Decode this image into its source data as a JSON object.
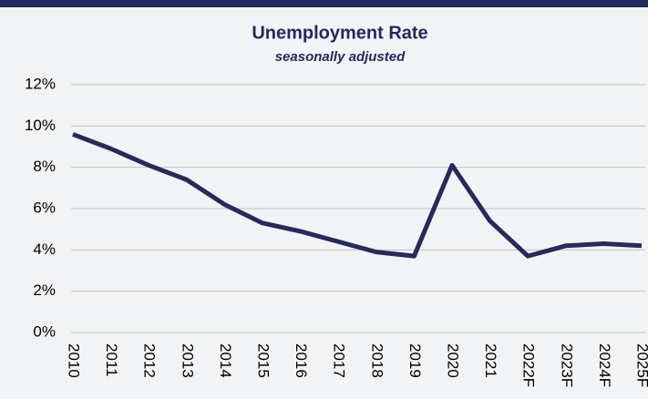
{
  "chart_data": {
    "type": "line",
    "title": "Unemployment Rate",
    "subtitle": "seasonally adjusted",
    "categories": [
      "2010",
      "2011",
      "2012",
      "2013",
      "2014",
      "2015",
      "2016",
      "2017",
      "2018",
      "2019",
      "2020",
      "2021",
      "2022F",
      "2023F",
      "2024F",
      "2025F"
    ],
    "values": [
      9.6,
      8.9,
      8.1,
      7.4,
      6.2,
      5.3,
      4.9,
      4.4,
      3.9,
      3.7,
      8.1,
      5.4,
      3.7,
      4.2,
      4.3,
      4.2
    ],
    "color": "#272a5b",
    "ylim": [
      0,
      12
    ],
    "yticks": [
      {
        "value": 0,
        "label": "0%"
      },
      {
        "value": 2,
        "label": "2%"
      },
      {
        "value": 4,
        "label": "4%"
      },
      {
        "value": 6,
        "label": "6%"
      },
      {
        "value": 8,
        "label": "8%"
      },
      {
        "value": 10,
        "label": "10%"
      },
      {
        "value": 12,
        "label": "12%"
      }
    ],
    "grid": true
  }
}
